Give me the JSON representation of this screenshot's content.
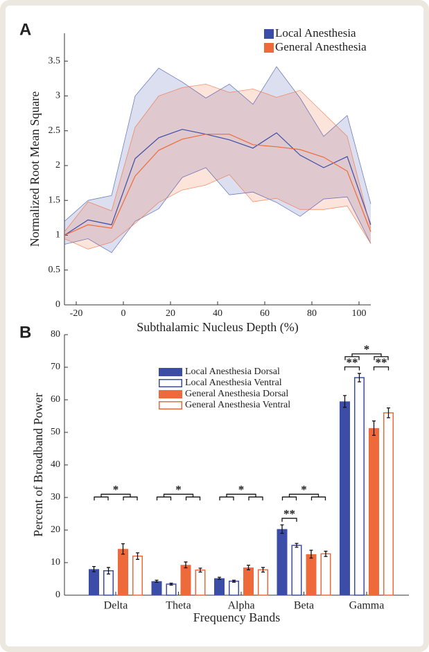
{
  "chart_data": [
    {
      "type": "line",
      "panel": "A",
      "xlabel": "Subthalamic Nucleus Depth (%)",
      "ylabel": "Normalized Root Mean Square",
      "x": [
        -25,
        -15,
        -5,
        5,
        15,
        25,
        35,
        45,
        55,
        65,
        75,
        85,
        95,
        105
      ],
      "xlim": [
        -25,
        105
      ],
      "xticks": [
        -20,
        0,
        20,
        40,
        60,
        80,
        100
      ],
      "ylim": [
        0,
        3.9
      ],
      "yticks": [
        0,
        0.5,
        1,
        1.5,
        2,
        2.5,
        3,
        3.5
      ],
      "legend": "upper-right",
      "series": [
        {
          "name": "Local Anesthesia",
          "color": "#3b4da6",
          "values": [
            1.0,
            1.22,
            1.15,
            2.1,
            2.4,
            2.52,
            2.45,
            2.37,
            2.25,
            2.47,
            2.15,
            1.97,
            2.13,
            1.15
          ],
          "upper": [
            1.2,
            1.5,
            1.57,
            3.0,
            3.4,
            3.2,
            2.97,
            3.17,
            2.88,
            3.42,
            2.97,
            2.42,
            2.72,
            1.45
          ],
          "lower": [
            0.87,
            0.95,
            0.75,
            1.2,
            1.38,
            1.83,
            1.97,
            1.58,
            1.62,
            1.47,
            1.27,
            1.52,
            1.55,
            0.88
          ]
        },
        {
          "name": "General Anesthesia",
          "color": "#ef6a3a",
          "values": [
            1.0,
            1.15,
            1.1,
            1.85,
            2.22,
            2.38,
            2.45,
            2.45,
            2.3,
            2.27,
            2.23,
            2.12,
            1.92,
            1.05
          ],
          "upper": [
            1.05,
            1.48,
            1.35,
            2.55,
            3.0,
            3.12,
            3.17,
            3.05,
            3.1,
            2.98,
            3.08,
            2.75,
            2.42,
            1.1
          ],
          "lower": [
            0.95,
            0.8,
            0.9,
            1.17,
            1.47,
            1.65,
            1.72,
            1.87,
            1.48,
            1.53,
            1.37,
            1.37,
            1.42,
            0.88
          ]
        }
      ]
    },
    {
      "type": "bar",
      "panel": "B",
      "xlabel": "Frequency Bands",
      "ylabel": "Percent of Broadband Power",
      "categories": [
        "Delta",
        "Theta",
        "Alpha",
        "Beta",
        "Gamma"
      ],
      "ylim": [
        0,
        80
      ],
      "yticks": [
        0,
        10,
        20,
        30,
        40,
        50,
        60,
        70,
        80
      ],
      "legend": "upper-center",
      "series": [
        {
          "name": "Local Anesthesia Dorsal",
          "color": "#3b4da6",
          "fill": "solid",
          "values": [
            8,
            4.3,
            5.2,
            20.3,
            59.5
          ],
          "errors": [
            0.8,
            0.3,
            0.3,
            1.3,
            1.8
          ]
        },
        {
          "name": "Local Anesthesia Ventral",
          "color": "#3b4da6",
          "fill": "hollow",
          "values": [
            7.5,
            3.4,
            4.3,
            15.3,
            66.8
          ],
          "errors": [
            1.0,
            0.3,
            0.3,
            0.6,
            1.3
          ]
        },
        {
          "name": "General Anesthesia Dorsal",
          "color": "#ef6a3a",
          "fill": "solid",
          "values": [
            14.2,
            9.3,
            8.5,
            12.6,
            51.3
          ],
          "errors": [
            1.6,
            0.9,
            0.7,
            1.2,
            2.2
          ]
        },
        {
          "name": "General Anesthesia Ventral",
          "color": "#ef6a3a",
          "fill": "hollow",
          "values": [
            12,
            7.7,
            7.8,
            12.7,
            56
          ],
          "errors": [
            1.0,
            0.6,
            0.7,
            0.8,
            1.5
          ]
        }
      ],
      "annotations": [
        {
          "category": 0,
          "text": "*",
          "bars": [
            0,
            1,
            2,
            3
          ]
        },
        {
          "category": 1,
          "text": "*",
          "bars": [
            0,
            1,
            2,
            3
          ]
        },
        {
          "category": 2,
          "text": "*",
          "bars": [
            0,
            1,
            2,
            3
          ]
        },
        {
          "category": 3,
          "text": "*",
          "bars": [
            0,
            1,
            2,
            3
          ]
        },
        {
          "category": 3,
          "text": "**",
          "bars": [
            0,
            1
          ]
        },
        {
          "category": 4,
          "text": "*",
          "bars": [
            0,
            1,
            2,
            3
          ]
        },
        {
          "category": 4,
          "text": "**",
          "bars": [
            0,
            1
          ]
        },
        {
          "category": 4,
          "text": "**",
          "bars": [
            2,
            3
          ]
        }
      ]
    }
  ]
}
